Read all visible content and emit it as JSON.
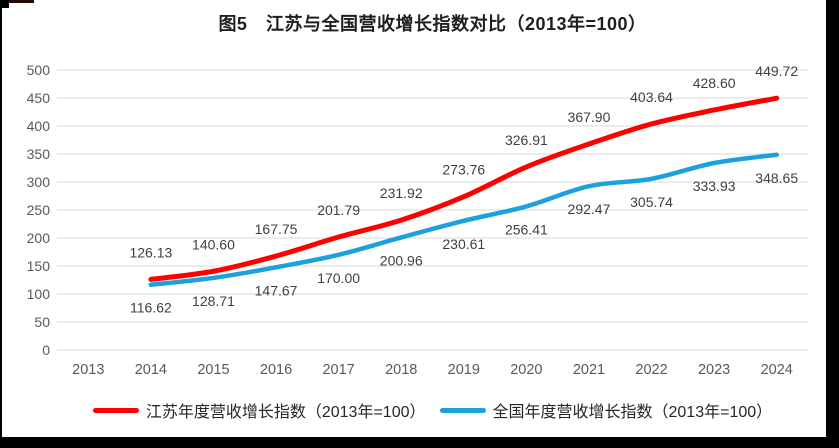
{
  "chart_data": {
    "type": "line",
    "title": "图5　江苏与全国营收增长指数对比（2013年=100）",
    "categories": [
      "2013",
      "2014",
      "2015",
      "2016",
      "2017",
      "2018",
      "2019",
      "2020",
      "2021",
      "2022",
      "2023",
      "2024"
    ],
    "series": [
      {
        "name": "江苏年度营收增长指数（2013年=100）",
        "color": "#fe0000",
        "label_position": "above",
        "values": [
          null,
          126.13,
          140.6,
          167.75,
          201.79,
          231.92,
          273.76,
          326.91,
          367.9,
          403.64,
          428.6,
          449.72
        ],
        "labels": [
          null,
          "126.13",
          "140.60",
          "167.75",
          "201.79",
          "231.92",
          "273.76",
          "326.91",
          "367.90",
          "403.64",
          "428.60",
          "449.72"
        ]
      },
      {
        "name": "全国年度营收增长指数（2013年=100）",
        "color": "#1ba1dc",
        "label_position": "below",
        "values": [
          null,
          116.62,
          128.71,
          147.67,
          170.0,
          200.96,
          230.61,
          256.41,
          292.47,
          305.74,
          333.93,
          348.65
        ],
        "labels": [
          null,
          "116.62",
          "128.71",
          "147.67",
          "170.00",
          "200.96",
          "230.61",
          "256.41",
          "292.47",
          "305.74",
          "333.93",
          "348.65"
        ]
      }
    ],
    "ylim": [
      0,
      500
    ],
    "yticks": [
      0,
      50,
      100,
      150,
      200,
      250,
      300,
      350,
      400,
      450,
      500
    ],
    "grid": true,
    "legend_position": "bottom",
    "line_smoothing": true,
    "colors": {
      "grid": "#d9d9d9",
      "axis_text": "#595959",
      "label_text": "#404040",
      "title_text": "#1f1f1f"
    }
  }
}
